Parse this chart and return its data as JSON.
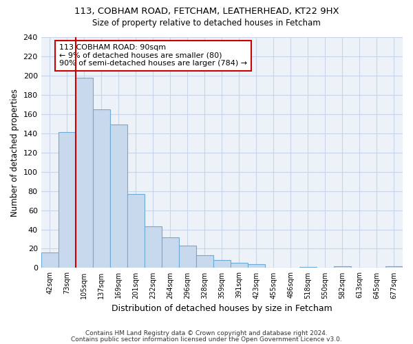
{
  "title1": "113, COBHAM ROAD, FETCHAM, LEATHERHEAD, KT22 9HX",
  "title2": "Size of property relative to detached houses in Fetcham",
  "xlabel": "Distribution of detached houses by size in Fetcham",
  "ylabel": "Number of detached properties",
  "footer1": "Contains HM Land Registry data © Crown copyright and database right 2024.",
  "footer2": "Contains public sector information licensed under the Open Government Licence v3.0.",
  "bin_labels": [
    "42sqm",
    "73sqm",
    "105sqm",
    "137sqm",
    "169sqm",
    "201sqm",
    "232sqm",
    "264sqm",
    "296sqm",
    "328sqm",
    "359sqm",
    "391sqm",
    "423sqm",
    "455sqm",
    "486sqm",
    "518sqm",
    "550sqm",
    "582sqm",
    "613sqm",
    "645sqm",
    "677sqm"
  ],
  "bar_values": [
    16,
    141,
    198,
    165,
    149,
    77,
    43,
    32,
    23,
    13,
    8,
    5,
    4,
    0,
    0,
    1,
    0,
    2,
    0,
    0,
    2
  ],
  "bar_color": "#c8d9ee",
  "bar_edge_color": "#6aaad4",
  "vline_x": 1.5,
  "annotation_text": "113 COBHAM ROAD: 90sqm\n← 9% of detached houses are smaller (80)\n90% of semi-detached houses are larger (784) →",
  "annotation_box_color": "#ffffff",
  "annotation_box_edge": "#cc0000",
  "vline_color": "#cc0000",
  "ylim": [
    0,
    240
  ],
  "yticks": [
    0,
    20,
    40,
    60,
    80,
    100,
    120,
    140,
    160,
    180,
    200,
    220,
    240
  ],
  "bg_color": "#edf2f9",
  "grid_color": "#c8d4e8"
}
